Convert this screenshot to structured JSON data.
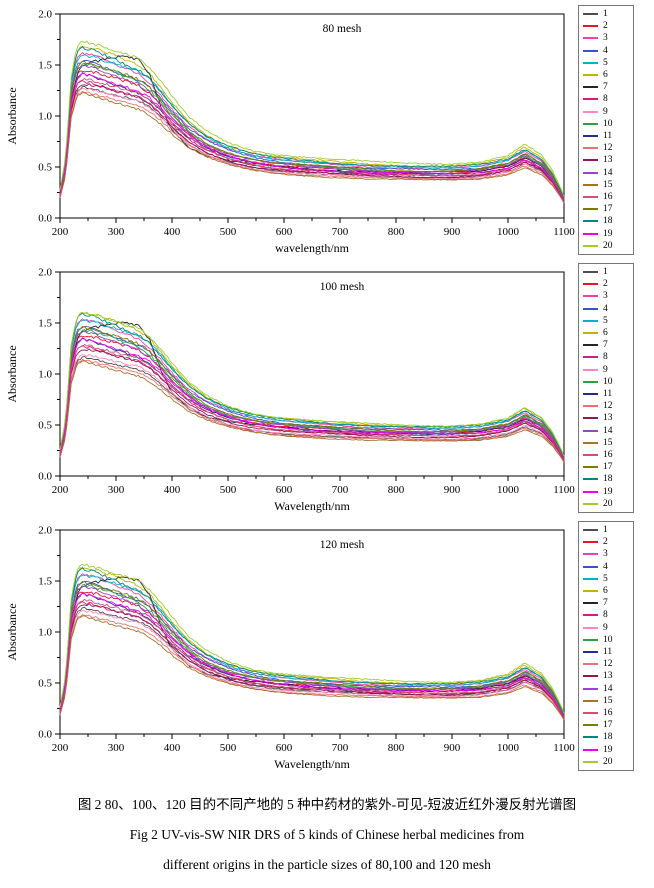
{
  "figure": {
    "caption_zh": "图 2  80、100、120 目的不同产地的 5 种中药材的紫外-可见-短波近红外漫反射光谱图",
    "caption_en_line1": "Fig 2    UV-vis-SW NIR DRS of 5 kinds of Chinese herbal medicines from",
    "caption_en_line2": "different origins in the particle sizes of 80,100 and 120 mesh"
  },
  "legend_labels": [
    "1",
    "2",
    "3",
    "4",
    "5",
    "6",
    "7",
    "8",
    "9",
    "10",
    "11",
    "12",
    "13",
    "14",
    "15",
    "16",
    "17",
    "18",
    "19",
    "20"
  ],
  "palette": [
    "#4d4d4d",
    "#e8132a",
    "#ef3fae",
    "#3355cc",
    "#00b2c8",
    "#c0b400",
    "#262626",
    "#cc1f8b",
    "#ff85c2",
    "#2f9e41",
    "#232b8f",
    "#e57373",
    "#93184f",
    "#9944cc",
    "#a8702a",
    "#d4506e",
    "#7a7a00",
    "#00897b",
    "#ee00ee",
    "#9ccc2e"
  ],
  "axes": {
    "xticks": [
      200,
      300,
      400,
      500,
      600,
      700,
      800,
      900,
      1000,
      1100
    ],
    "xtick_labels": [
      "200",
      "300",
      "400",
      "500",
      "600",
      "700",
      "800",
      "900",
      "1000",
      "1100"
    ],
    "yticks": [
      0.0,
      0.5,
      1.0,
      1.5,
      2.0
    ],
    "ytick_labels": [
      "0.0",
      "0.5",
      "1.0",
      "1.5",
      "2.0"
    ],
    "xlim": [
      200,
      1100
    ],
    "ylim": [
      0.0,
      2.0
    ]
  },
  "x_samples": [
    200,
    210,
    220,
    230,
    240,
    260,
    280,
    300,
    320,
    340,
    360,
    380,
    400,
    430,
    460,
    500,
    540,
    580,
    620,
    660,
    700,
    750,
    800,
    850,
    900,
    950,
    1000,
    1030,
    1060,
    1080,
    1095,
    1100
  ],
  "profiles": {
    "standard": [
      0.16,
      0.34,
      0.8,
      0.97,
      1.0,
      0.985,
      0.96,
      0.935,
      0.91,
      0.885,
      0.835,
      0.76,
      0.675,
      0.565,
      0.49,
      0.425,
      0.385,
      0.36,
      0.345,
      0.335,
      0.325,
      0.315,
      0.31,
      0.305,
      0.305,
      0.315,
      0.35,
      0.41,
      0.35,
      0.26,
      0.16,
      0.12
    ],
    "plateau": [
      0.15,
      0.3,
      0.7,
      0.88,
      0.93,
      0.96,
      0.98,
      1.0,
      1.0,
      0.99,
      0.9,
      0.7,
      0.55,
      0.44,
      0.39,
      0.355,
      0.335,
      0.32,
      0.31,
      0.3,
      0.295,
      0.29,
      0.285,
      0.283,
      0.283,
      0.29,
      0.32,
      0.375,
      0.325,
      0.245,
      0.155,
      0.115
    ],
    "note": "Profiles are normalized absorbance vs x_samples; series value = peak * profile"
  },
  "chart_data": [
    {
      "type": "line",
      "title": "80 mesh",
      "xlabel": "wavelength/nm",
      "ylabel": "Absorbance",
      "xlim": [
        200,
        1100
      ],
      "ylim": [
        0.0,
        2.0
      ],
      "grid": false,
      "legend_position": "right-outside",
      "series": [
        {
          "name": "1",
          "peak": 1.3
        },
        {
          "name": "2",
          "peak": 1.45
        },
        {
          "name": "3",
          "peak": 1.6
        },
        {
          "name": "4",
          "peak": 1.55
        },
        {
          "name": "5",
          "peak": 1.62
        },
        {
          "name": "6",
          "peak": 1.68
        },
        {
          "name": "7",
          "peak": 1.58,
          "profile": "plateau"
        },
        {
          "name": "8",
          "peak": 1.35
        },
        {
          "name": "9",
          "peak": 1.28
        },
        {
          "name": "10",
          "peak": 1.5
        },
        {
          "name": "11",
          "peak": 1.4
        },
        {
          "name": "12",
          "peak": 1.25
        },
        {
          "name": "13",
          "peak": 1.32
        },
        {
          "name": "14",
          "peak": 1.48
        },
        {
          "name": "15",
          "peak": 1.22
        },
        {
          "name": "16",
          "peak": 1.38
        },
        {
          "name": "17",
          "peak": 1.52
        },
        {
          "name": "18",
          "peak": 1.65
        },
        {
          "name": "19",
          "peak": 1.42
        },
        {
          "name": "20",
          "peak": 1.75
        }
      ]
    },
    {
      "type": "line",
      "title": "100 mesh",
      "xlabel": "Wavelength/nm",
      "ylabel": "Absorbance",
      "xlim": [
        200,
        1100
      ],
      "ylim": [
        0.0,
        2.0
      ],
      "grid": false,
      "legend_position": "right-outside",
      "series": [
        {
          "name": "1",
          "peak": 1.18
        },
        {
          "name": "2",
          "peak": 1.38
        },
        {
          "name": "3",
          "peak": 1.52
        },
        {
          "name": "4",
          "peak": 1.47
        },
        {
          "name": "5",
          "peak": 1.55
        },
        {
          "name": "6",
          "peak": 1.6
        },
        {
          "name": "7",
          "peak": 1.5,
          "profile": "plateau"
        },
        {
          "name": "8",
          "peak": 1.28
        },
        {
          "name": "9",
          "peak": 1.2
        },
        {
          "name": "10",
          "peak": 1.42
        },
        {
          "name": "11",
          "peak": 1.33
        },
        {
          "name": "12",
          "peak": 1.15
        },
        {
          "name": "13",
          "peak": 1.25
        },
        {
          "name": "14",
          "peak": 1.4
        },
        {
          "name": "15",
          "peak": 1.12
        },
        {
          "name": "16",
          "peak": 1.3
        },
        {
          "name": "17",
          "peak": 1.45
        },
        {
          "name": "18",
          "peak": 1.57
        },
        {
          "name": "19",
          "peak": 1.35
        },
        {
          "name": "20",
          "peak": 1.62
        }
      ]
    },
    {
      "type": "line",
      "title": "120 mesh",
      "xlabel": "Wavelength/nm",
      "ylabel": "Absorbance",
      "xlim": [
        200,
        1100
      ],
      "ylim": [
        0.0,
        2.0
      ],
      "grid": false,
      "legend_position": "right-outside",
      "series": [
        {
          "name": "1",
          "peak": 1.25
        },
        {
          "name": "2",
          "peak": 1.4
        },
        {
          "name": "3",
          "peak": 1.55
        },
        {
          "name": "4",
          "peak": 1.5
        },
        {
          "name": "5",
          "peak": 1.58
        },
        {
          "name": "6",
          "peak": 1.63
        },
        {
          "name": "7",
          "peak": 1.53,
          "profile": "plateau"
        },
        {
          "name": "8",
          "peak": 1.3
        },
        {
          "name": "9",
          "peak": 1.22
        },
        {
          "name": "10",
          "peak": 1.45
        },
        {
          "name": "11",
          "peak": 1.36
        },
        {
          "name": "12",
          "peak": 1.18
        },
        {
          "name": "13",
          "peak": 1.28
        },
        {
          "name": "14",
          "peak": 1.43
        },
        {
          "name": "15",
          "peak": 1.15
        },
        {
          "name": "16",
          "peak": 1.33
        },
        {
          "name": "17",
          "peak": 1.48
        },
        {
          "name": "18",
          "peak": 1.6
        },
        {
          "name": "19",
          "peak": 1.38
        },
        {
          "name": "20",
          "peak": 1.68
        }
      ]
    }
  ]
}
